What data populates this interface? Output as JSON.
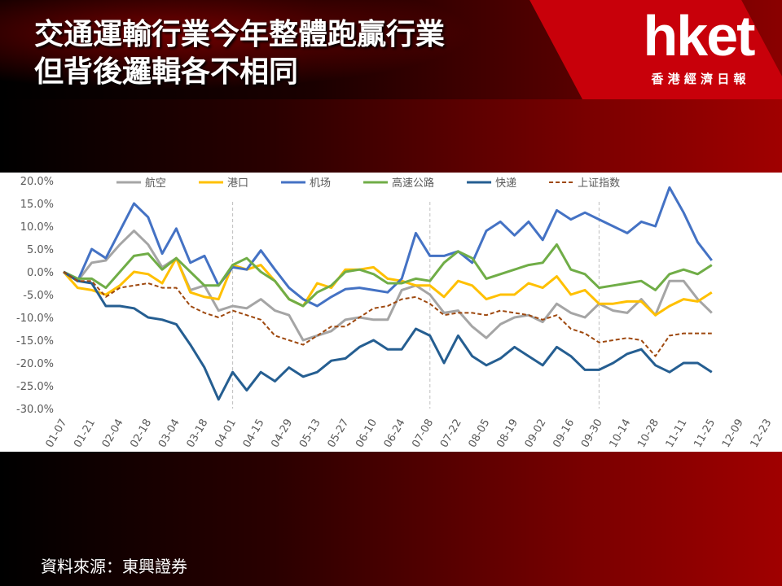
{
  "header": {
    "title": [
      "交通運輸行業今年整體跑贏行業",
      "但背後邏輯各不相同"
    ],
    "logo": "hket",
    "logo_subtitle": "香 港 經 濟 日 報"
  },
  "source": "資料來源：東興證券",
  "chart_data": {
    "type": "line",
    "categories": [
      "01-07",
      null,
      "01-21",
      null,
      "02-04",
      null,
      "02-18",
      null,
      "03-04",
      null,
      "03-18",
      null,
      "04-01",
      null,
      "04-15",
      null,
      "04-29",
      null,
      "05-13",
      null,
      "05-27",
      null,
      "06-10",
      null,
      "06-24",
      null,
      "07-08",
      null,
      "07-22",
      null,
      "08-05",
      null,
      "08-19",
      null,
      "09-02",
      null,
      "09-16",
      null,
      "09-30",
      null,
      "10-14",
      null,
      "10-28",
      null,
      "11-11",
      null,
      "11-25",
      null,
      "12-09",
      null,
      "12-23"
    ],
    "series": [
      {
        "name": "航空",
        "color": "#a5a5a5",
        "values": [
          0,
          -2,
          2,
          2.5,
          6,
          9,
          6,
          1,
          3,
          -4,
          -3,
          -8.5,
          -7.5,
          -8,
          -6,
          -8.5,
          -9.5,
          -15,
          -14,
          -13,
          -10.5,
          -10,
          -10.5,
          -10.5,
          -4,
          -3,
          -5,
          -9,
          -8.5,
          -12,
          -14.5,
          -11.5,
          -10,
          -9.5,
          -11,
          -7,
          -9,
          -10,
          -7,
          -8.5,
          -9,
          -6,
          -9.5,
          -2,
          -2,
          -6,
          -9,
          null,
          null,
          null,
          null
        ]
      },
      {
        "name": "港口",
        "color": "#ffc000",
        "values": [
          0,
          -3.5,
          -4,
          -5,
          -3,
          0,
          -0.5,
          -2.5,
          3,
          -4.5,
          -5.5,
          -6,
          1.5,
          0.5,
          1.5,
          -2,
          -6,
          -7.5,
          -2.5,
          -3.5,
          0.5,
          0.5,
          1,
          -1.5,
          -2,
          -3,
          -3,
          -5.5,
          -2,
          -3,
          -6,
          -5,
          -5,
          -2.5,
          -3.5,
          -1,
          -5,
          -4,
          -7,
          -7,
          -6.5,
          -6.5,
          -9.5,
          -7.5,
          -6,
          -6.5,
          -4.5,
          null,
          null,
          null,
          null
        ]
      },
      {
        "name": "机场",
        "color": "#4472c4",
        "values": [
          0,
          -2,
          5,
          3,
          9,
          15,
          12,
          4,
          9.5,
          2,
          3.5,
          -3,
          1,
          0.5,
          4.7,
          0.5,
          -3.5,
          -6,
          -7.5,
          -5.5,
          -3.8,
          -3.5,
          -4,
          -4.5,
          -1.5,
          8.5,
          3.5,
          3.5,
          4.5,
          2,
          9,
          11,
          8,
          11,
          7,
          13.5,
          11.5,
          13,
          11.5,
          10,
          8.5,
          11,
          10,
          18.5,
          13,
          6.5,
          2.5,
          null,
          null,
          null,
          null
        ]
      },
      {
        "name": "高速公路",
        "color": "#70ad47",
        "values": [
          0,
          -1.5,
          -1.5,
          -3.5,
          0,
          3.5,
          4,
          0.5,
          3,
          0,
          -3,
          -3,
          1.5,
          3,
          0,
          -2,
          -6,
          -7.5,
          -4.5,
          -3,
          0,
          0.5,
          -0.5,
          -2.5,
          -2.5,
          -1.5,
          -2,
          2,
          4.5,
          3,
          -1.5,
          -0.5,
          0.5,
          1.5,
          2,
          6,
          0.5,
          -0.5,
          -3.5,
          -3,
          -2.5,
          -2,
          -4,
          -0.5,
          0.5,
          -0.5,
          1.5,
          null,
          null,
          null,
          null
        ]
      },
      {
        "name": "快递",
        "color": "#255e91",
        "values": [
          0,
          -2,
          -2.5,
          -7.5,
          -7.5,
          -8,
          -10,
          -10.5,
          -11.5,
          -16,
          -21,
          -28,
          -22,
          -26,
          -22,
          -24,
          -21,
          -23,
          -22,
          -19.5,
          -19,
          -16.5,
          -15,
          -17,
          -17,
          -12.5,
          -14,
          -20,
          -14,
          -18.5,
          -20.5,
          -19,
          -16.5,
          -18.5,
          -20.5,
          -16.5,
          -18.5,
          -21.5,
          -21.5,
          -20,
          -18,
          -17,
          -20.5,
          -22,
          -20,
          -20,
          -22,
          null,
          null,
          null,
          null
        ]
      },
      {
        "name": "上证指数",
        "color": "#9e480e",
        "style": "dashed",
        "values": [
          0,
          -2,
          -2,
          -5.5,
          -3.5,
          -3,
          -2.5,
          -3.5,
          -3.5,
          -7.5,
          -9,
          -10,
          -8.5,
          -9.5,
          -10.5,
          -14,
          -15,
          -16,
          -14,
          -12,
          -12,
          -10,
          -8,
          -7.5,
          -6,
          -5.5,
          -7,
          -9.5,
          -9,
          -9,
          -9.5,
          -8.5,
          -9,
          -9.5,
          -10.5,
          -9.5,
          -12.5,
          -13.5,
          -15.5,
          -15,
          -14.5,
          -15,
          -18.5,
          -14,
          -13.5,
          -13.5,
          -13.5,
          null,
          null,
          null,
          null
        ]
      }
    ],
    "ylim": [
      -30,
      20
    ],
    "yticks": [
      {
        "value": 20,
        "label": "20.0%"
      },
      {
        "value": 15,
        "label": "15.0%"
      },
      {
        "value": 10,
        "label": "10.0%"
      },
      {
        "value": 5,
        "label": "5.0%"
      },
      {
        "value": 0,
        "label": "0.0%"
      },
      {
        "value": -5,
        "label": "-5.0%"
      },
      {
        "value": -10,
        "label": "-10.0%"
      },
      {
        "value": -15,
        "label": "-15.0%"
      },
      {
        "value": -20,
        "label": "-20.0%"
      },
      {
        "value": -25,
        "label": "-25.0%"
      },
      {
        "value": -30,
        "label": "-30.0%"
      }
    ],
    "grid": false,
    "legend": "top",
    "vlines": [
      "04-01",
      "07-08",
      "09-30"
    ]
  }
}
